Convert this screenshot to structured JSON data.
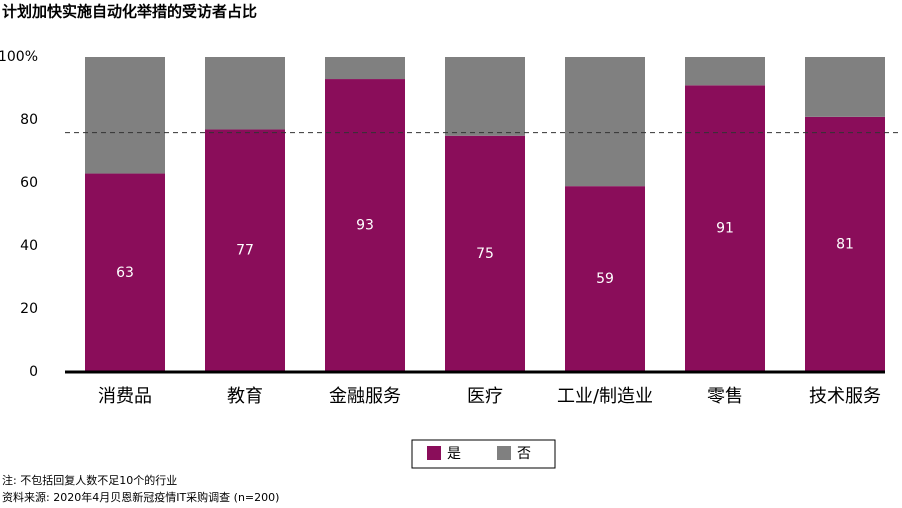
{
  "chart_data": {
    "type": "stacked_bar",
    "title": "计划加快实施自动化举措的受访者占比",
    "categories": [
      "消费品",
      "教育",
      "金融服务",
      "医疗",
      "工业/制造业",
      "零售",
      "技术服务"
    ],
    "series": [
      {
        "name": "是",
        "color": "#8a0d5a",
        "values": [
          63,
          77,
          93,
          75,
          59,
          91,
          81
        ]
      },
      {
        "name": "否",
        "color": "#808080",
        "values": [
          37,
          23,
          7,
          25,
          41,
          9,
          19
        ]
      }
    ],
    "ylim": [
      0,
      100
    ],
    "yticks": [
      0,
      20,
      40,
      60,
      80,
      {
        "value": 100,
        "label": "100%"
      }
    ],
    "reference_line": 76,
    "notes": [
      "注: 不包括回复人数不足10个的行业",
      "资料来源: 2020年4月贝恩新冠疫情IT采购调查 (n=200)"
    ]
  }
}
